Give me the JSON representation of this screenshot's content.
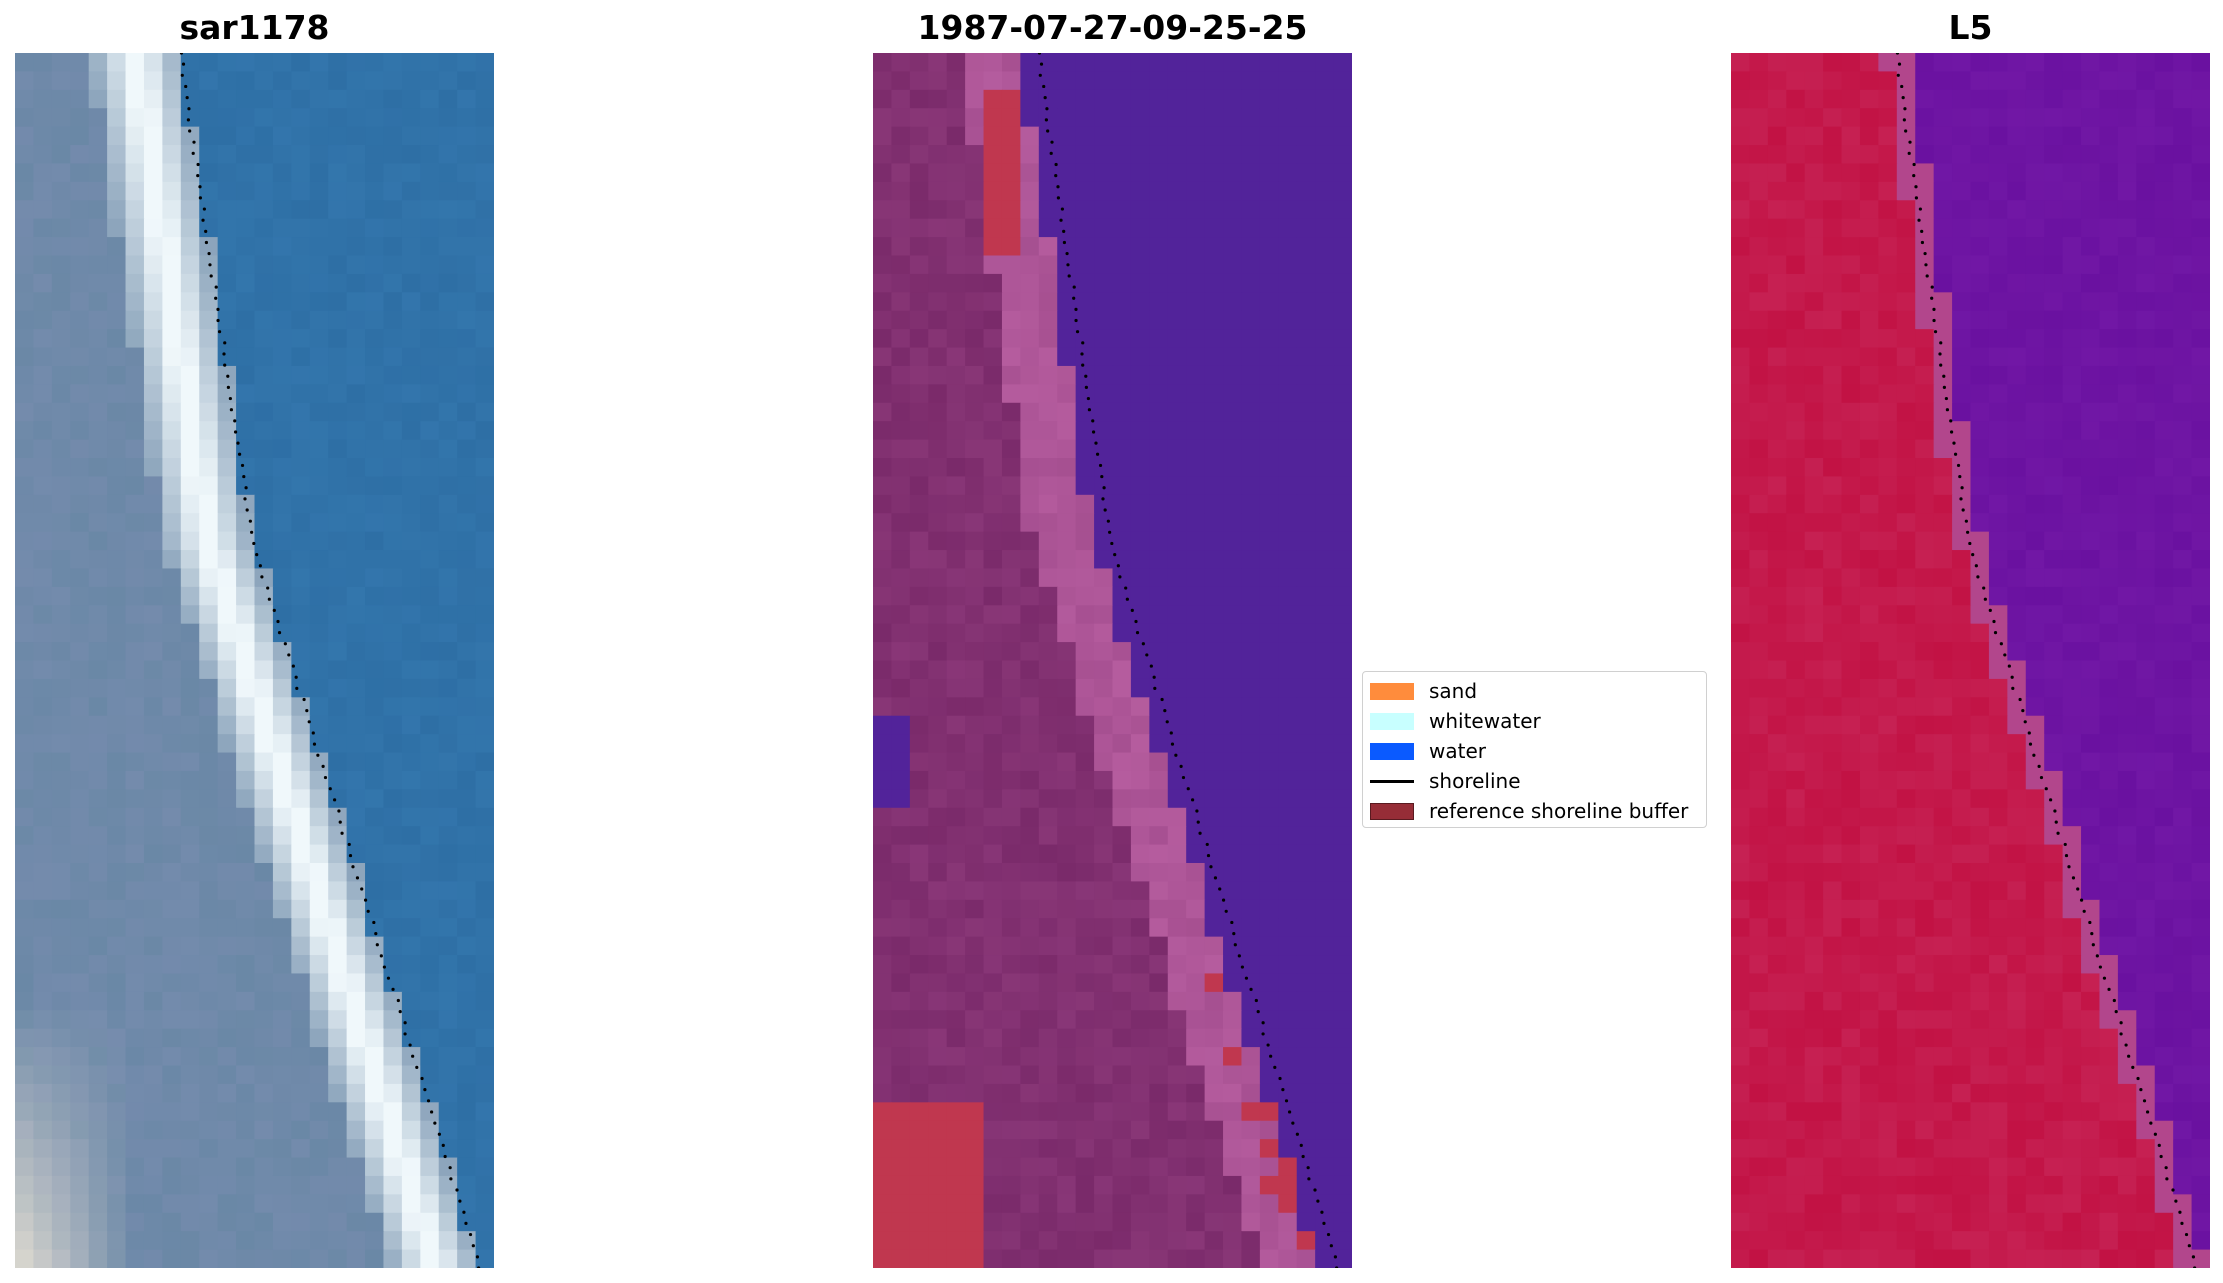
{
  "panels": [
    {
      "title": "sar1178"
    },
    {
      "title": "1987-07-27-09-25-25"
    },
    {
      "title": "L5"
    }
  ],
  "legend": {
    "items": [
      {
        "label": "sand",
        "color": "#ff8c3c"
      },
      {
        "label": "whitewater",
        "color": "#c8ffff"
      },
      {
        "label": "water",
        "color": "#0a5aff"
      },
      {
        "label": "shoreline",
        "color": "#000000"
      },
      {
        "label": "reference shoreline buffer",
        "color": "#962d37"
      }
    ]
  },
  "colors": {
    "rgb_water": "#2e6fa5",
    "rgb_foam": "#f0f8fb",
    "rgb_land": "#6a88a6",
    "class_water": "#52239a",
    "class_land": "#7a2a6a",
    "class_wet": "#b55c9e",
    "class_red": "#c0374f",
    "index_land": "#c21244",
    "index_water": "#6a11a0"
  }
}
